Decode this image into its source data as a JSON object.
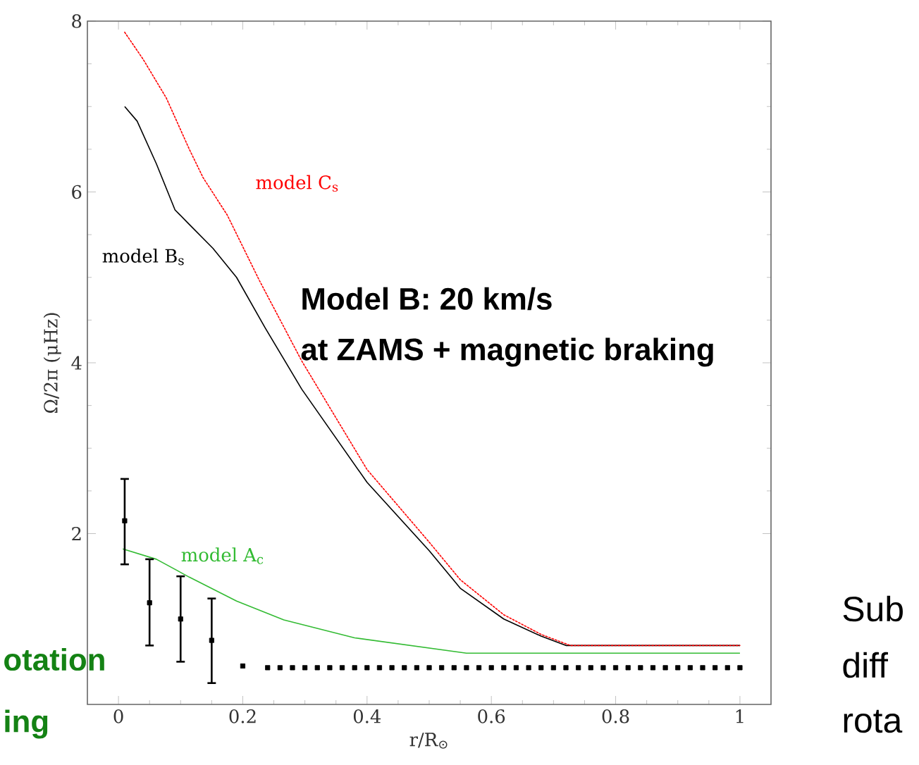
{
  "chart_data": {
    "type": "line",
    "xlabel": "r/R$_{⊙}$",
    "ylabel": "Ω/2π  (μHz)",
    "xlim": [
      -0.05,
      1.05
    ],
    "ylim": [
      0,
      8
    ],
    "xticks": [
      0,
      0.2,
      0.4,
      0.6,
      0.8,
      1
    ],
    "yticks": [
      2,
      4,
      6,
      8
    ],
    "series": [
      {
        "name": "model B$_{s}$",
        "color": "#000000",
        "line_style": "solid",
        "x": [
          0.01,
          0.03,
          0.061,
          0.091,
          0.114,
          0.152,
          0.19,
          0.236,
          0.295,
          0.4,
          0.5,
          0.55,
          0.62,
          0.68,
          0.72,
          1.0
        ],
        "values": [
          7.0,
          6.83,
          6.33,
          5.79,
          5.62,
          5.34,
          5.0,
          4.41,
          3.69,
          2.6,
          1.8,
          1.36,
          1.0,
          0.8,
          0.69,
          0.69
        ]
      },
      {
        "name": "model C$_{s}$",
        "color": "#ff0000",
        "line_style": "dotted",
        "x": [
          0.01,
          0.04,
          0.077,
          0.114,
          0.136,
          0.175,
          0.227,
          0.295,
          0.4,
          0.5,
          0.55,
          0.62,
          0.68,
          0.727,
          1.0
        ],
        "values": [
          7.87,
          7.55,
          7.1,
          6.5,
          6.17,
          5.73,
          4.96,
          4.02,
          2.75,
          1.9,
          1.46,
          1.05,
          0.82,
          0.69,
          0.69
        ]
      },
      {
        "name": "model A$_{c}$",
        "color": "#33bb33",
        "line_style": "solid",
        "x": [
          0.007,
          0.061,
          0.114,
          0.19,
          0.266,
          0.38,
          0.56,
          0.7,
          1.0
        ],
        "values": [
          1.82,
          1.7,
          1.49,
          1.21,
          0.99,
          0.78,
          0.6,
          0.6,
          0.6
        ]
      },
      {
        "type": "scatter",
        "color": "#000000",
        "marker": "square",
        "x": [
          0.01,
          0.05,
          0.1,
          0.15,
          0.2,
          0.24,
          0.26,
          0.28,
          0.3,
          0.32,
          0.34,
          0.36,
          0.38,
          0.4,
          0.42,
          0.44,
          0.46,
          0.48,
          0.5,
          0.52,
          0.54,
          0.56,
          0.58,
          0.6,
          0.62,
          0.64,
          0.66,
          0.68,
          0.7,
          0.72,
          0.74,
          0.76,
          0.78,
          0.8,
          0.82,
          0.84,
          0.86,
          0.88,
          0.9,
          0.92,
          0.94,
          0.96,
          0.98,
          1.0
        ],
        "values": [
          2.15,
          1.19,
          1.0,
          0.75,
          0.45,
          0.43,
          0.43,
          0.43,
          0.43,
          0.43,
          0.43,
          0.43,
          0.43,
          0.43,
          0.43,
          0.43,
          0.43,
          0.43,
          0.43,
          0.43,
          0.43,
          0.43,
          0.43,
          0.43,
          0.43,
          0.43,
          0.43,
          0.43,
          0.43,
          0.43,
          0.43,
          0.43,
          0.43,
          0.43,
          0.43,
          0.43,
          0.43,
          0.43,
          0.43,
          0.43,
          0.43,
          0.43,
          0.43,
          0.43
        ],
        "errors": [
          [
            1.64,
            2.64
          ],
          [
            0.69,
            1.7
          ],
          [
            0.5,
            1.5
          ],
          [
            0.25,
            1.24
          ],
          null,
          null,
          null,
          null,
          null,
          null,
          null,
          null,
          null,
          null,
          null,
          null,
          null,
          null,
          null,
          null,
          null,
          null,
          null,
          null,
          null,
          null,
          null,
          null,
          null,
          null,
          null,
          null,
          null,
          null,
          null,
          null,
          null,
          null,
          null,
          null,
          null,
          null,
          null,
          null
        ]
      }
    ],
    "annotations": [
      "Model B: 20 km/s",
      "at ZAMS + magnetic braking",
      "otation",
      "ing",
      "Sub",
      "diff",
      "rota"
    ]
  }
}
